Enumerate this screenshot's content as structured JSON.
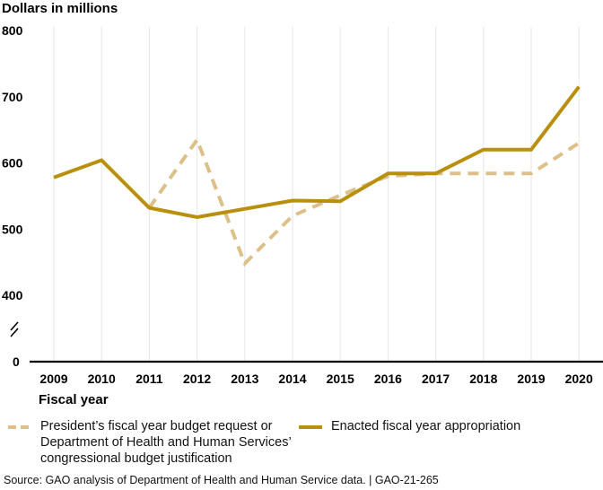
{
  "chart_data": {
    "type": "line",
    "title": "",
    "ylabel": "Dollars in millions",
    "xlabel": "Fiscal year",
    "ylim": [
      0,
      800
    ],
    "y_axis_break": {
      "from": 0,
      "to": 400
    },
    "y_ticks": [
      0,
      400,
      500,
      600,
      700,
      800
    ],
    "y_tick_labels": [
      "0",
      "400",
      "500",
      "600",
      "700",
      "800"
    ],
    "categories": [
      "2009",
      "2010",
      "2011",
      "2012",
      "2013",
      "2014",
      "2015",
      "2016",
      "2017",
      "2018",
      "2019",
      "2020"
    ],
    "grid": "vertical",
    "legend_position": "bottom",
    "series": [
      {
        "name": "President’s fiscal year budget request or Department of Health and Human Services’ congressional budget justification",
        "style": "dashed",
        "color": "#DDC088",
        "values": [
          null,
          null,
          532,
          635,
          448,
          520,
          551,
          580,
          584,
          584,
          584,
          630
        ]
      },
      {
        "name": "Enacted fiscal year appropriation",
        "style": "solid",
        "color": "#B8900E",
        "values": [
          578,
          604,
          532,
          518,
          null,
          543,
          542,
          584,
          584,
          620,
          620,
          715
        ]
      }
    ]
  },
  "legend": {
    "items": [
      {
        "lines": [
          "President’s fiscal year budget request or",
          "Department of Health and Human Services’",
          "congressional budget justification"
        ],
        "color": "#DDC088",
        "style": "dashed"
      },
      {
        "lines": [
          "Enacted fiscal year appropriation"
        ],
        "color": "#B8900E",
        "style": "solid"
      }
    ]
  },
  "source": "Source: GAO analysis of Department of Health and Human Service data.  |  GAO-21-265"
}
